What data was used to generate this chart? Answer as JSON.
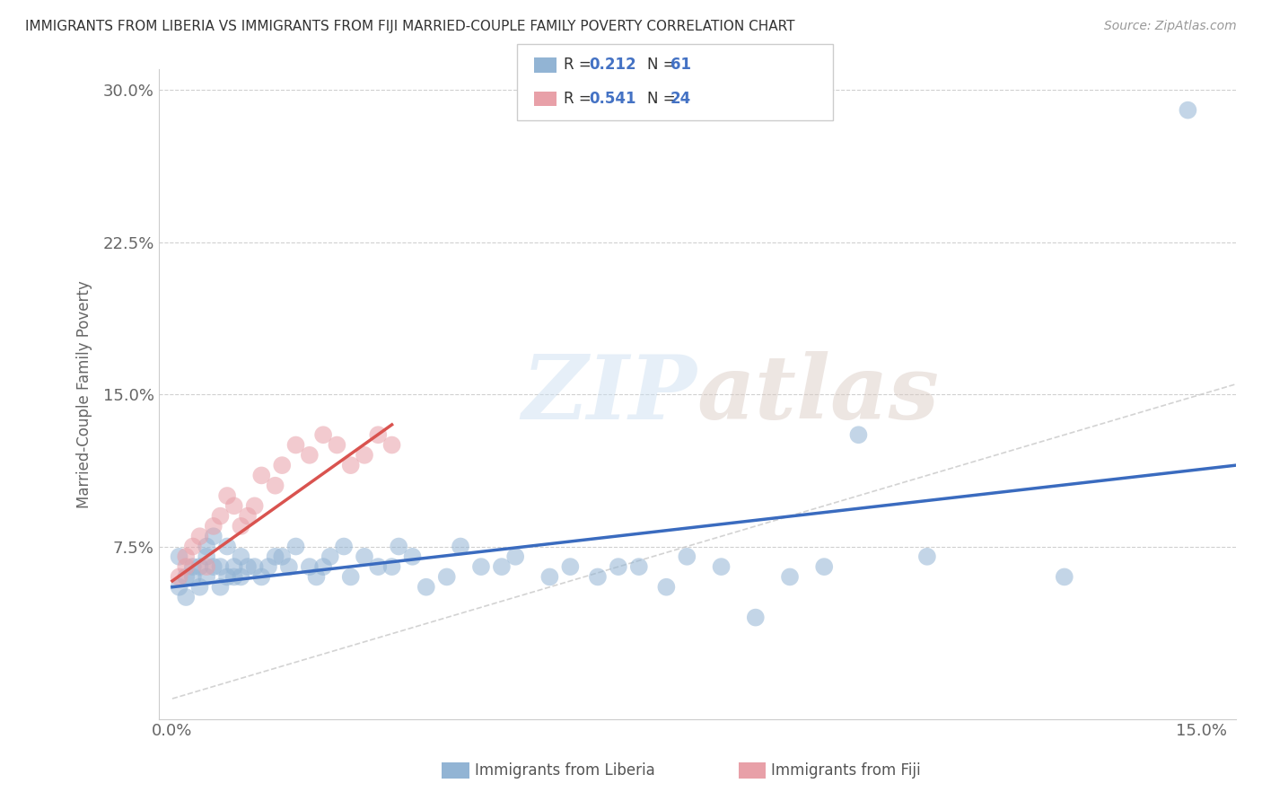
{
  "title": "IMMIGRANTS FROM LIBERIA VS IMMIGRANTS FROM FIJI MARRIED-COUPLE FAMILY POVERTY CORRELATION CHART",
  "source": "Source: ZipAtlas.com",
  "ylabel": "Married-Couple Family Poverty",
  "xlim": [
    -0.002,
    0.155
  ],
  "ylim": [
    -0.01,
    0.31
  ],
  "xticks": [
    0.0,
    0.15
  ],
  "xticklabels": [
    "0.0%",
    "15.0%"
  ],
  "yticks": [
    0.075,
    0.15,
    0.225,
    0.3
  ],
  "yticklabels": [
    "7.5%",
    "15.0%",
    "22.5%",
    "30.0%"
  ],
  "liberia_R": 0.212,
  "liberia_N": 61,
  "fiji_R": 0.541,
  "fiji_N": 24,
  "color_liberia": "#92b4d4",
  "color_fiji": "#e8a0a8",
  "color_liberia_line": "#3a6bbf",
  "color_fiji_line": "#d9534f",
  "color_diagonal": "#c8c8c8",
  "background_color": "#ffffff",
  "watermark_zip": "ZIP",
  "watermark_atlas": "atlas",
  "liberia_x": [
    0.001,
    0.001,
    0.002,
    0.002,
    0.003,
    0.003,
    0.004,
    0.004,
    0.005,
    0.005,
    0.005,
    0.006,
    0.006,
    0.007,
    0.007,
    0.008,
    0.008,
    0.009,
    0.009,
    0.01,
    0.01,
    0.011,
    0.012,
    0.013,
    0.014,
    0.015,
    0.016,
    0.017,
    0.018,
    0.02,
    0.021,
    0.022,
    0.023,
    0.025,
    0.026,
    0.028,
    0.03,
    0.032,
    0.033,
    0.035,
    0.037,
    0.04,
    0.042,
    0.045,
    0.048,
    0.05,
    0.055,
    0.058,
    0.062,
    0.065,
    0.068,
    0.072,
    0.075,
    0.08,
    0.085,
    0.09,
    0.095,
    0.1,
    0.11,
    0.13,
    0.148
  ],
  "liberia_y": [
    0.07,
    0.055,
    0.06,
    0.05,
    0.065,
    0.06,
    0.055,
    0.065,
    0.075,
    0.06,
    0.07,
    0.08,
    0.065,
    0.065,
    0.055,
    0.075,
    0.06,
    0.065,
    0.06,
    0.07,
    0.06,
    0.065,
    0.065,
    0.06,
    0.065,
    0.07,
    0.07,
    0.065,
    0.075,
    0.065,
    0.06,
    0.065,
    0.07,
    0.075,
    0.06,
    0.07,
    0.065,
    0.065,
    0.075,
    0.07,
    0.055,
    0.06,
    0.075,
    0.065,
    0.065,
    0.07,
    0.06,
    0.065,
    0.06,
    0.065,
    0.065,
    0.055,
    0.07,
    0.065,
    0.04,
    0.06,
    0.065,
    0.13,
    0.07,
    0.06,
    0.29
  ],
  "fiji_x": [
    0.001,
    0.002,
    0.002,
    0.003,
    0.004,
    0.005,
    0.006,
    0.007,
    0.008,
    0.009,
    0.01,
    0.011,
    0.012,
    0.013,
    0.015,
    0.016,
    0.018,
    0.02,
    0.022,
    0.024,
    0.026,
    0.028,
    0.03,
    0.032
  ],
  "fiji_y": [
    0.06,
    0.07,
    0.065,
    0.075,
    0.08,
    0.065,
    0.085,
    0.09,
    0.1,
    0.095,
    0.085,
    0.09,
    0.095,
    0.11,
    0.105,
    0.115,
    0.125,
    0.12,
    0.13,
    0.125,
    0.115,
    0.12,
    0.13,
    0.125
  ],
  "liberia_line_x": [
    0.0,
    0.155
  ],
  "liberia_line_y": [
    0.055,
    0.115
  ],
  "fiji_line_x": [
    0.0,
    0.032
  ],
  "fiji_line_y": [
    0.058,
    0.135
  ]
}
